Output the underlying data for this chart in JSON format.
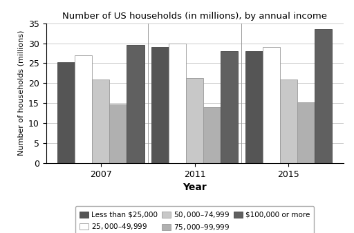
{
  "title": "Number of US households (in millions), by annual income",
  "xlabel": "Year",
  "ylabel": "Number of households (millions)",
  "years": [
    "2007",
    "2011",
    "2015"
  ],
  "categories": [
    "Less than $25,000",
    "$25,000–$49,999",
    "$50,000–$74,999",
    "$75,000–$99,999",
    "$100,000 or more"
  ],
  "values": {
    "Less than $25,000": [
      25.3,
      29.0,
      28.1
    ],
    "$25,000–$49,999": [
      27.0,
      30.0,
      29.0
    ],
    "$50,000–$74,999": [
      21.0,
      21.2,
      21.0
    ],
    "$75,000–$99,999": [
      14.7,
      14.0,
      15.3
    ],
    "$100,000 or more": [
      29.5,
      28.0,
      33.5
    ]
  },
  "colors": {
    "Less than $25,000": "#555555",
    "$25,000–$49,999": "#ffffff",
    "$50,000–$74,999": "#c8c8c8",
    "$75,000–$99,999": "#b0b0b0",
    "$100,000 or more": "#606060"
  },
  "edge_colors": {
    "Less than $25,000": "#444444",
    "$25,000–$49,999": "#999999",
    "$50,000–$74,999": "#999999",
    "$75,000–$99,999": "#999999",
    "$100,000 or more": "#444444"
  },
  "ylim": [
    0,
    35
  ],
  "yticks": [
    0,
    5,
    10,
    15,
    20,
    25,
    30,
    35
  ],
  "bar_width": 0.12,
  "background_color": "#ffffff",
  "grid_color": "#cccccc",
  "group_centers": [
    0.0,
    0.65,
    1.3
  ]
}
